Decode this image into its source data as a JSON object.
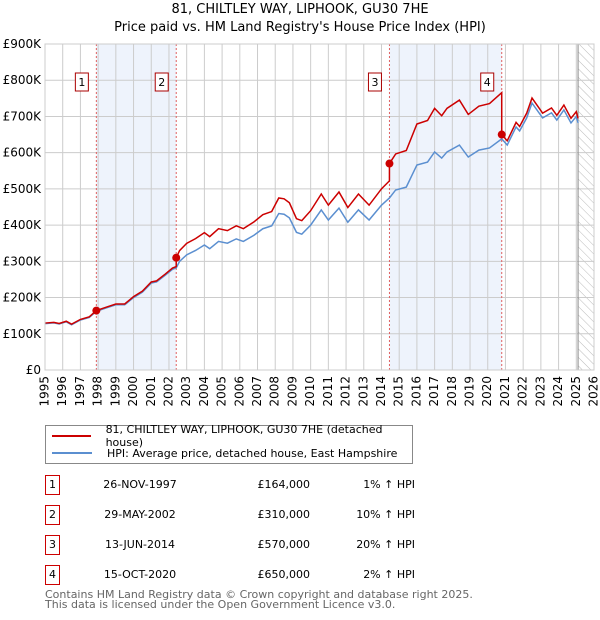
{
  "title_line1": "81, CHILTLEY WAY, LIPHOOK, GU30 7HE",
  "title_line2": "Price paid vs. HM Land Registry's House Price Index (HPI)",
  "colors": {
    "property": "#cc0000",
    "hpi": "#5b8fd0",
    "shade": "#eef3fc",
    "grid": "#cccccc"
  },
  "legend": {
    "property": "81, CHILTLEY WAY, LIPHOOK, GU30 7HE (detached house)",
    "hpi": "HPI: Average price, detached house, East Hampshire"
  },
  "sales": [
    {
      "num": "1",
      "date": "26-NOV-1997",
      "price": "£164,000",
      "hpi": "1% ↑ HPI"
    },
    {
      "num": "2",
      "date": "29-MAY-2002",
      "price": "£310,000",
      "hpi": "10% ↑ HPI"
    },
    {
      "num": "3",
      "date": "13-JUN-2014",
      "price": "£570,000",
      "hpi": "20% ↑ HPI"
    },
    {
      "num": "4",
      "date": "15-OCT-2020",
      "price": "£650,000",
      "hpi": "2% ↑ HPI"
    }
  ],
  "footer_line1": "Contains HM Land Registry data © Crown copyright and database right 2025.",
  "footer_line2": "This data is licensed under the Open Government Licence v3.0.",
  "chart_data": {
    "type": "line",
    "title": "81, CHILTLEY WAY, LIPHOOK, GU30 7HE — Price paid vs. HM Land Registry's House Price Index (HPI)",
    "xlim": [
      1995,
      2026
    ],
    "ylim": [
      0,
      900000
    ],
    "x_ticks": [
      "1995",
      "1996",
      "1997",
      "1998",
      "1999",
      "2000",
      "2001",
      "2002",
      "2003",
      "2004",
      "2005",
      "2006",
      "2007",
      "2008",
      "2009",
      "2010",
      "2011",
      "2012",
      "2013",
      "2014",
      "2015",
      "2016",
      "2017",
      "2018",
      "2019",
      "2020",
      "2021",
      "2022",
      "2023",
      "2024",
      "2025",
      "2026"
    ],
    "y_ticks": [
      {
        "v": 0,
        "label": "£0"
      },
      {
        "v": 100000,
        "label": "£100K"
      },
      {
        "v": 200000,
        "label": "£200K"
      },
      {
        "v": 300000,
        "label": "£300K"
      },
      {
        "v": 400000,
        "label": "£400K"
      },
      {
        "v": 500000,
        "label": "£500K"
      },
      {
        "v": 600000,
        "label": "£600K"
      },
      {
        "v": 700000,
        "label": "£700K"
      },
      {
        "v": 800000,
        "label": "£800K"
      },
      {
        "v": 900000,
        "label": "£900K"
      }
    ],
    "grid": true,
    "sale_points": [
      {
        "label": "1",
        "x": 1997.9,
        "y": 164000
      },
      {
        "label": "2",
        "x": 2002.41,
        "y": 310000
      },
      {
        "label": "3",
        "x": 2014.45,
        "y": 570000
      },
      {
        "label": "4",
        "x": 2020.79,
        "y": 650000
      }
    ],
    "forecast_start": 2025.1,
    "hpi_series": {
      "name": "HPI: Average price, detached house, East Hampshire",
      "x": [
        1995.0,
        1995.5,
        1995.8,
        1996.2,
        1996.5,
        1997.0,
        1997.5,
        1997.9,
        1998.5,
        1999.0,
        1999.5,
        2000.0,
        2000.5,
        2001.0,
        2001.3,
        2001.8,
        2002.2,
        2002.41,
        2002.6,
        2003.0,
        2003.5,
        2004.0,
        2004.3,
        2004.8,
        2005.3,
        2005.8,
        2006.2,
        2006.8,
        2007.3,
        2007.8,
        2008.2,
        2008.5,
        2008.8,
        2009.2,
        2009.5,
        2010.0,
        2010.6,
        2011.0,
        2011.6,
        2012.1,
        2012.7,
        2013.3,
        2014.0,
        2014.45,
        2014.8,
        2015.4,
        2016.0,
        2016.6,
        2017.0,
        2017.4,
        2017.7,
        2018.4,
        2018.9,
        2019.5,
        2020.1,
        2020.79,
        2021.1,
        2021.6,
        2021.8,
        2022.2,
        2022.5,
        2023.1,
        2023.6,
        2023.9,
        2024.3,
        2024.7,
        2025.0,
        2025.1
      ],
      "y": [
        128000,
        130000,
        127000,
        133000,
        125000,
        138000,
        145000,
        162000,
        172000,
        180000,
        180000,
        200000,
        215000,
        240000,
        243000,
        262000,
        278000,
        282000,
        300000,
        318000,
        330000,
        345000,
        335000,
        355000,
        350000,
        362000,
        355000,
        372000,
        390000,
        398000,
        432000,
        430000,
        420000,
        380000,
        375000,
        400000,
        442000,
        414000,
        447000,
        408000,
        442000,
        414000,
        455000,
        475000,
        497000,
        505000,
        566000,
        574000,
        602000,
        585000,
        602000,
        621000,
        588000,
        607000,
        613000,
        638000,
        621000,
        671000,
        660000,
        696000,
        737000,
        696000,
        710000,
        690000,
        718000,
        682000,
        700000,
        682000
      ]
    },
    "property_series": {
      "name": "81, CHILTLEY WAY, LIPHOOK, GU30 7HE (detached house)",
      "method": "sale price indexed by HPI between sales"
    }
  }
}
